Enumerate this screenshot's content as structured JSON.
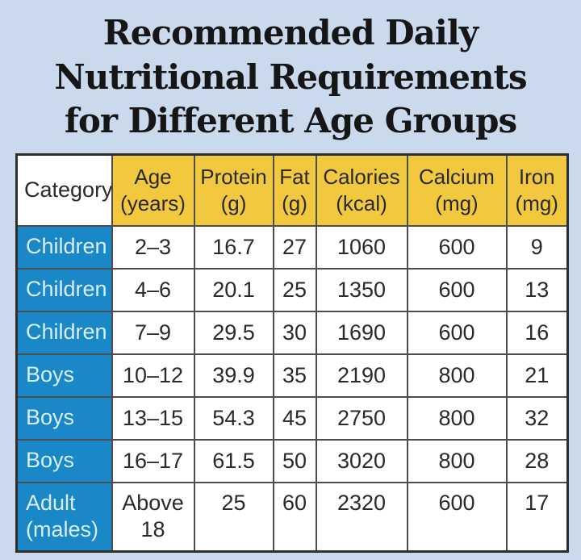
{
  "title": {
    "line1": "Recommended Daily",
    "line2": "Nutritional Requirements",
    "line3": "for Different Age Groups"
  },
  "colors": {
    "page_background": "#cbd9ec",
    "header_yellow": "#f2c83e",
    "category_blue": "#1a87c7",
    "category_text": "#d8eefb",
    "cell_text": "#2a2a2a",
    "border": "#4d4d4d"
  },
  "table": {
    "headers": [
      {
        "label": "Category",
        "unit": ""
      },
      {
        "label": "Age",
        "unit": "(years)"
      },
      {
        "label": "Protein",
        "unit": "(g)"
      },
      {
        "label": "Fat",
        "unit": "(g)"
      },
      {
        "label": "Calories",
        "unit": "(kcal)"
      },
      {
        "label": "Calcium",
        "unit": "(mg)"
      },
      {
        "label": "Iron",
        "unit": "(mg)"
      }
    ],
    "rows": [
      {
        "category": "Children",
        "age": "2–3",
        "protein": "16.7",
        "fat": "27",
        "calories": "1060",
        "calcium": "600",
        "iron": "9"
      },
      {
        "category": "Children",
        "age": "4–6",
        "protein": "20.1",
        "fat": "25",
        "calories": "1350",
        "calcium": "600",
        "iron": "13"
      },
      {
        "category": "Children",
        "age": "7–9",
        "protein": "29.5",
        "fat": "30",
        "calories": "1690",
        "calcium": "600",
        "iron": "16"
      },
      {
        "category": "Boys",
        "age": "10–12",
        "protein": "39.9",
        "fat": "35",
        "calories": "2190",
        "calcium": "800",
        "iron": "21"
      },
      {
        "category": "Boys",
        "age": "13–15",
        "protein": "54.3",
        "fat": "45",
        "calories": "2750",
        "calcium": "800",
        "iron": "32"
      },
      {
        "category": "Boys",
        "age": "16–17",
        "protein": "61.5",
        "fat": "50",
        "calories": "3020",
        "calcium": "800",
        "iron": "28"
      },
      {
        "category": "Adult (males)",
        "age": "Above 18",
        "protein": "25",
        "fat": "60",
        "calories": "2320",
        "calcium": "600",
        "iron": "17"
      }
    ]
  },
  "chart_data": {
    "type": "table",
    "title": "Recommended Daily Nutritional Requirements for Different Age Groups",
    "columns": [
      "Category",
      "Age (years)",
      "Protein (g)",
      "Fat (g)",
      "Calories (kcal)",
      "Calcium (mg)",
      "Iron (mg)"
    ],
    "rows": [
      [
        "Children",
        "2–3",
        16.7,
        27,
        1060,
        600,
        9
      ],
      [
        "Children",
        "4–6",
        20.1,
        25,
        1350,
        600,
        13
      ],
      [
        "Children",
        "7–9",
        29.5,
        30,
        1690,
        600,
        16
      ],
      [
        "Boys",
        "10–12",
        39.9,
        35,
        2190,
        800,
        21
      ],
      [
        "Boys",
        "13–15",
        54.3,
        45,
        2750,
        800,
        32
      ],
      [
        "Boys",
        "16–17",
        61.5,
        50,
        3020,
        800,
        28
      ],
      [
        "Adult (males)",
        "Above 18",
        25,
        60,
        2320,
        600,
        17
      ]
    ]
  }
}
